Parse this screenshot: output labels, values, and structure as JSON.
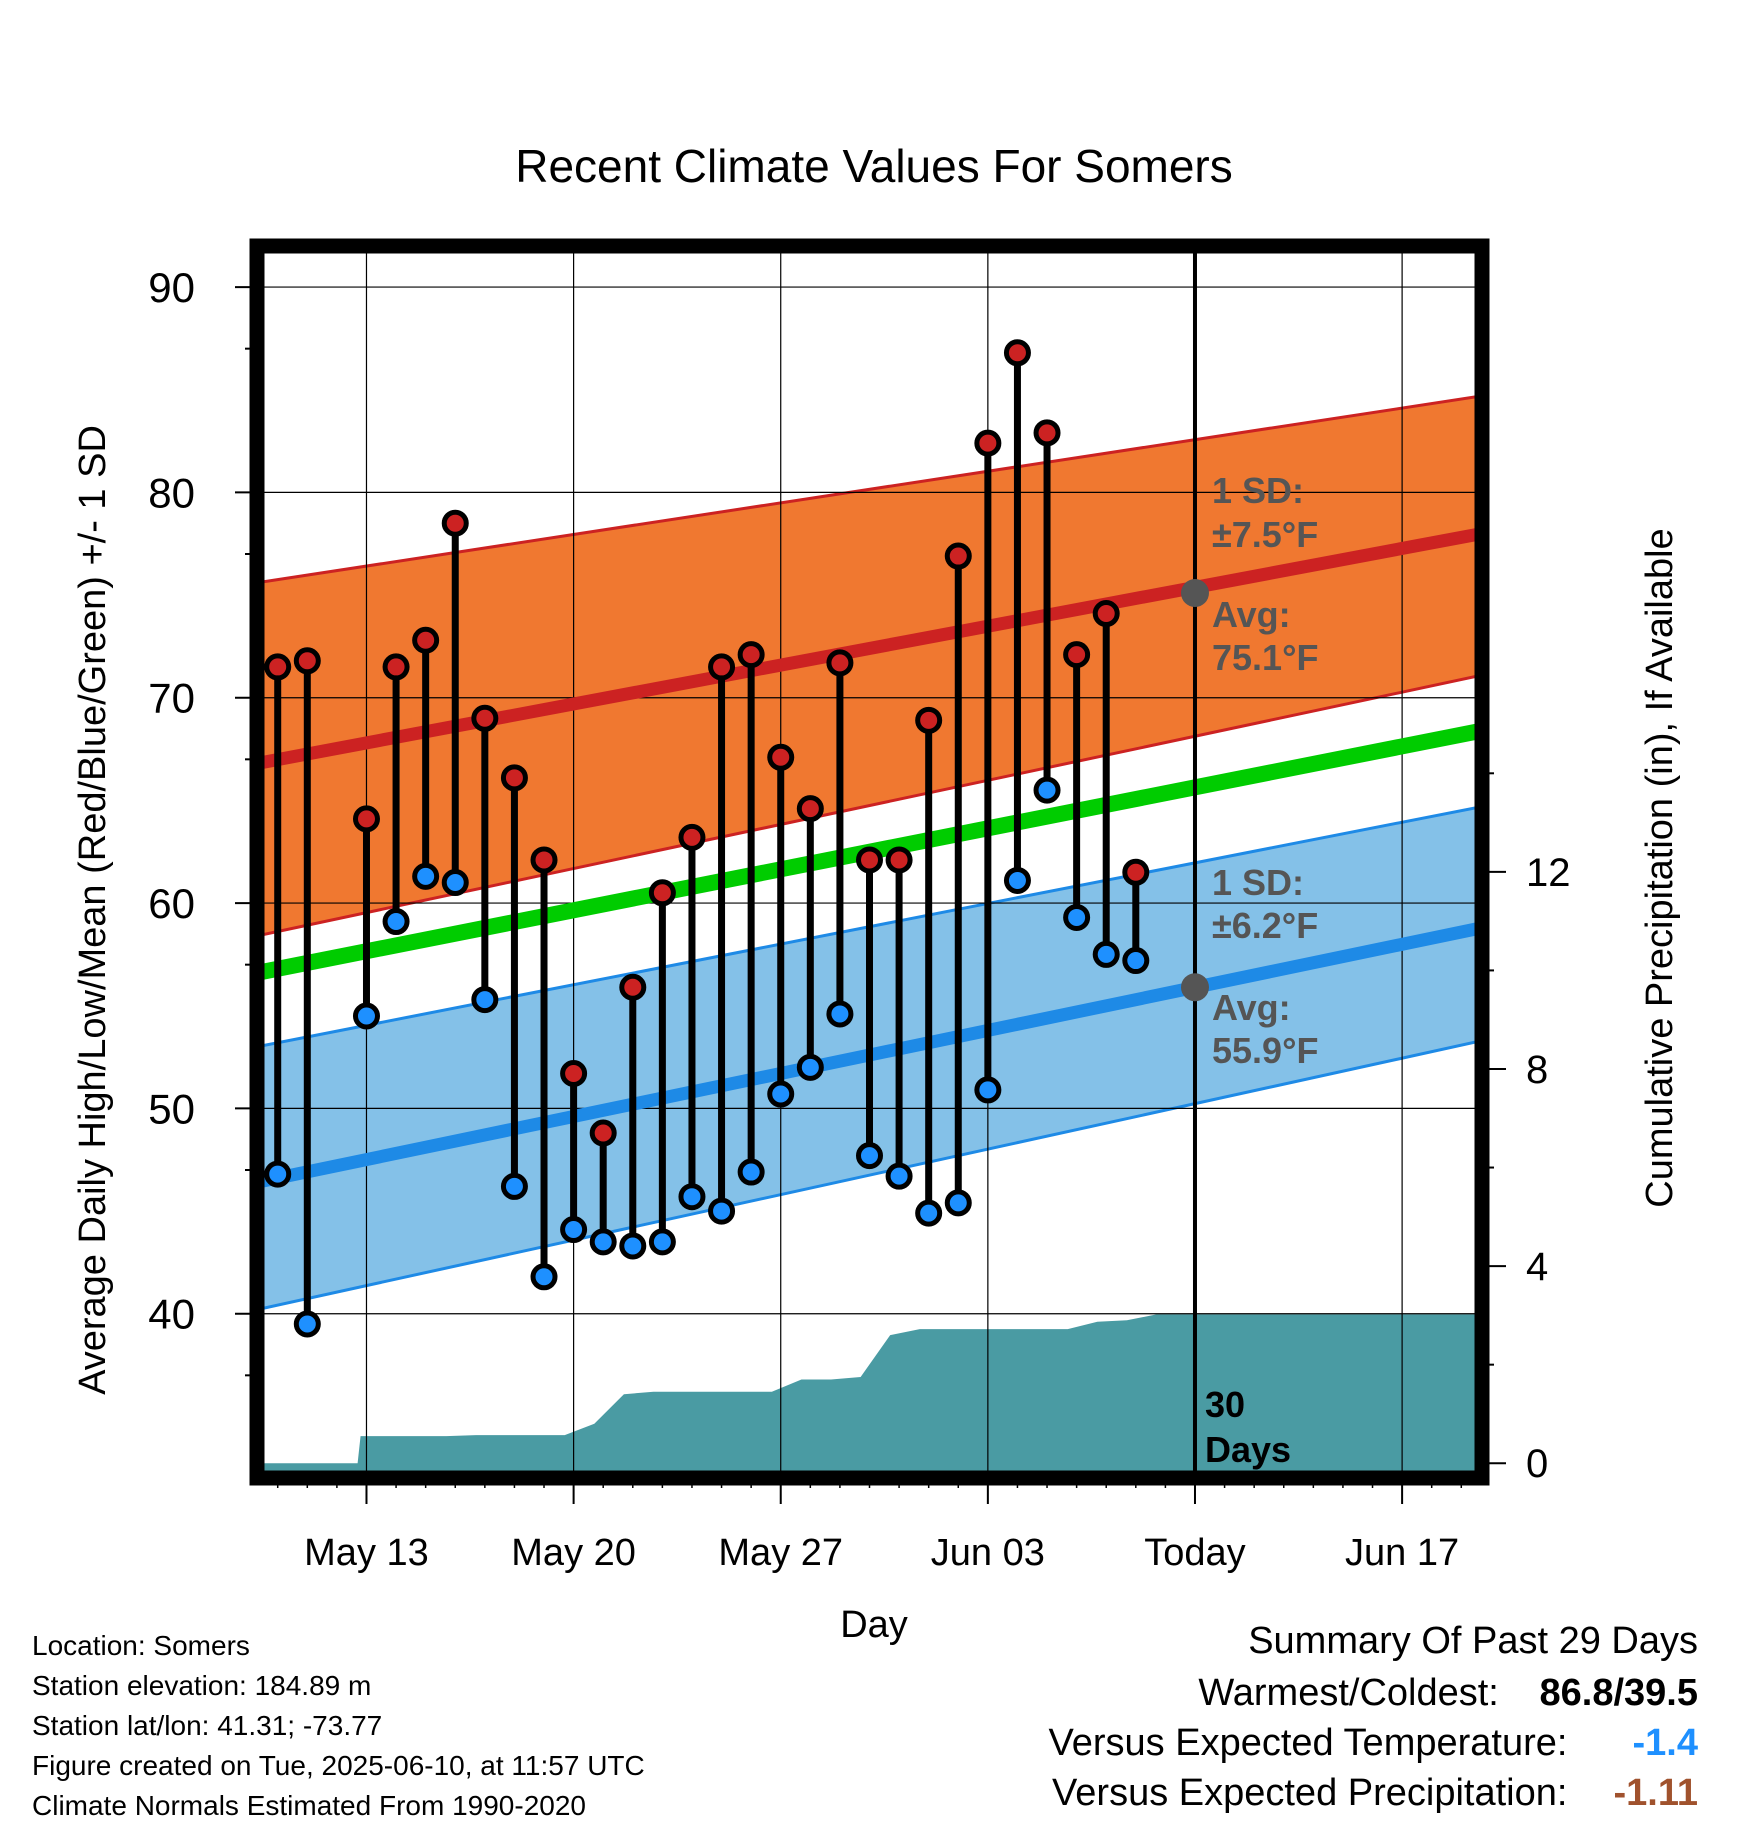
{
  "title": "Recent Climate Values For Somers",
  "xlabel": "Day",
  "ylabel_left": "Average Daily High/Low/Mean (Red/Blue/Green) +/- 1 SD",
  "ylabel_right": "Cumulative Precipitation (in), If Available",
  "annotations": {
    "high_sd_l1": "1 SD:",
    "high_sd_l2": "±7.5°F",
    "high_avg_l1": "Avg:",
    "high_avg_l2": "75.1°F",
    "low_sd_l1": "1 SD:",
    "low_sd_l2": "±6.2°F",
    "low_avg_l1": "Avg:",
    "low_avg_l2": "55.9°F",
    "days_l1": "30",
    "days_l2": "Days"
  },
  "info": {
    "location": "Location: Somers",
    "elevation": "Station elevation: 184.89 m",
    "latlon": "Station lat/lon: 41.31; -73.77",
    "created": "Figure created on Tue, 2025-06-10, at 11:57 UTC",
    "normals": "Climate Normals Estimated From 1990-2020"
  },
  "summary": {
    "heading": "Summary Of Past 29 Days",
    "warm_cold_label": "Warmest/Coldest:",
    "warm_cold_value": "86.8/39.5",
    "temp_label": "Versus Expected Temperature:",
    "temp_value": "-1.4",
    "precip_label": "Versus Expected Precipitation:",
    "precip_value": "-1.11"
  },
  "colors": {
    "high_band": "#f07830",
    "high_line": "#cc2222",
    "low_band": "#84c1e8",
    "low_line": "#1e8ae6",
    "mean_line": "#00cc00",
    "precip": "#4a9ba3",
    "high_marker": "#cc2222",
    "low_marker": "#1e90ff",
    "avg_dot": "#555555",
    "temp_value": "#1e90ff",
    "precip_value": "#a0522d"
  },
  "chart_data": {
    "type": "line",
    "x_tick_labels": [
      "May 13",
      "May 20",
      "May 27",
      "Jun 03",
      "Today",
      "Jun 17"
    ],
    "x_tick_days": [
      3,
      10,
      17,
      24,
      31,
      38
    ],
    "x_range_days": [
      -0.7,
      40.7
    ],
    "today_day": 31,
    "y_left_range": [
      32,
      92
    ],
    "y_left_ticks": [
      40,
      50,
      60,
      70,
      80,
      90
    ],
    "y_right_range": [
      -0.3,
      24.7
    ],
    "y_right_ticks": [
      0,
      4,
      8,
      12
    ],
    "series": [
      {
        "name": "High",
        "days": [
          0,
          1,
          3,
          4,
          5,
          6,
          7,
          8,
          9,
          10,
          11,
          12,
          13,
          14,
          15,
          16,
          17,
          18,
          19,
          20,
          21,
          22,
          23,
          24,
          25,
          26,
          27,
          28,
          29
        ],
        "values": [
          71.5,
          71.8,
          64.1,
          71.5,
          72.8,
          78.5,
          69.0,
          66.1,
          62.1,
          51.7,
          48.8,
          55.9,
          60.5,
          63.2,
          71.5,
          72.1,
          67.1,
          64.6,
          71.7,
          62.1,
          62.1,
          68.9,
          76.9,
          82.4,
          86.8,
          82.9,
          72.1,
          74.1,
          61.5
        ]
      },
      {
        "name": "Low",
        "days": [
          0,
          1,
          3,
          4,
          5,
          6,
          7,
          8,
          9,
          10,
          11,
          12,
          13,
          14,
          15,
          16,
          17,
          18,
          19,
          20,
          21,
          22,
          23,
          24,
          25,
          26,
          27,
          28,
          29
        ],
        "values": [
          46.8,
          39.5,
          54.5,
          59.1,
          61.3,
          61.0,
          55.3,
          46.2,
          41.8,
          44.1,
          43.5,
          43.3,
          43.5,
          45.7,
          45.0,
          46.9,
          50.7,
          52.0,
          54.6,
          47.7,
          46.7,
          44.9,
          45.4,
          50.9,
          61.1,
          65.5,
          59.3,
          57.5,
          57.2
        ]
      }
    ],
    "normals": {
      "high_avg": {
        "x": [
          -0.7,
          40.7
        ],
        "y": [
          66.8,
          78.0
        ]
      },
      "high_band_upper": {
        "x": [
          -0.7,
          40.7
        ],
        "y": [
          75.6,
          84.7
        ]
      },
      "high_band_lower": {
        "x": [
          -0.7,
          40.7
        ],
        "y": [
          58.4,
          71.1
        ]
      },
      "low_avg": {
        "x": [
          -0.7,
          40.7
        ],
        "y": [
          46.4,
          58.8
        ]
      },
      "low_band_upper": {
        "x": [
          -0.7,
          40.7
        ],
        "y": [
          53.0,
          64.7
        ]
      },
      "low_band_lower": {
        "x": [
          -0.7,
          40.7
        ],
        "y": [
          40.2,
          53.3
        ]
      },
      "mean_avg": {
        "x": [
          -0.7,
          40.7
        ],
        "y": [
          56.6,
          68.4
        ]
      },
      "today_high_avg": 75.1,
      "today_low_avg": 55.9
    },
    "precipitation": {
      "days": [
        -0.7,
        2.7,
        2.8,
        3.7,
        4.7,
        5.7,
        6.7,
        7.7,
        8.7,
        9.7,
        10.7,
        11.7,
        12.7,
        13.7,
        14.7,
        15.7,
        16.7,
        17.7,
        18.7,
        19.7,
        20.7,
        21.7,
        22.7,
        23.7,
        24.7,
        25.7,
        26.7,
        27.7,
        28.7,
        29.7,
        30.7,
        31.0,
        40.7
      ],
      "values": [
        0,
        0,
        0.55,
        0.55,
        0.55,
        0.55,
        0.57,
        0.57,
        0.57,
        0.57,
        0.8,
        1.4,
        1.45,
        1.45,
        1.45,
        1.45,
        1.45,
        1.7,
        1.7,
        1.75,
        2.6,
        2.72,
        2.72,
        2.72,
        2.72,
        2.72,
        2.72,
        2.87,
        2.9,
        3.02,
        3.02,
        3.02,
        3.02
      ]
    }
  }
}
